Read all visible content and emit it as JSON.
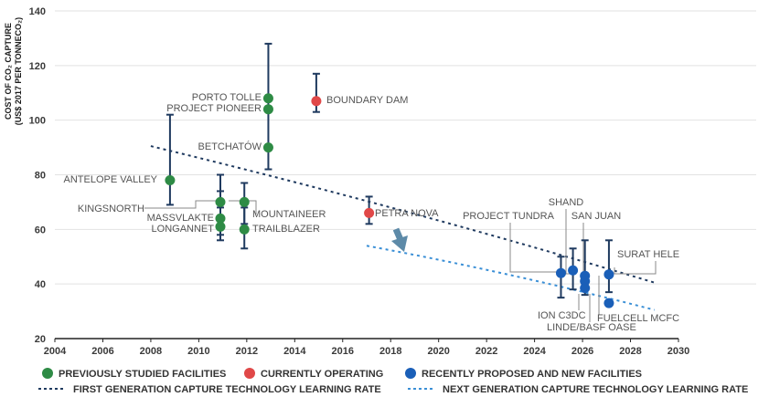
{
  "chart_data": {
    "type": "scatter",
    "ylabel_line1": "COST OF CO₂ CAPTURE",
    "ylabel_line2": "(US$ 2017 PER TONNECO₂)",
    "xlim": [
      2004,
      2030
    ],
    "ylim": [
      20,
      140
    ],
    "xticks": [
      2004,
      2006,
      2008,
      2010,
      2012,
      2014,
      2016,
      2018,
      2020,
      2022,
      2024,
      2026,
      2028,
      2030
    ],
    "yticks": [
      20,
      40,
      60,
      80,
      100,
      120,
      140
    ],
    "grid": "horizontal",
    "colors": {
      "previously": "#2e8b45",
      "operating": "#e04848",
      "proposed": "#1a5fb8",
      "errorbar": "#1f3a5f",
      "first_gen": "#1f3a5f",
      "next_gen": "#3a8fd6",
      "arrow": "#5d8aa8",
      "leader": "#888888"
    },
    "points": [
      {
        "name": "ANTELOPE VALLEY",
        "x": 2008.8,
        "y": 78,
        "low": 69,
        "high": 102,
        "category": "previously"
      },
      {
        "name": "MASSVLAKTE",
        "x": 2010.9,
        "y": 70,
        "low": 60,
        "high": 80,
        "category": "previously"
      },
      {
        "name": "KINGSNORTH",
        "x": 2010.9,
        "y": 64,
        "low": 58,
        "high": 74,
        "category": "previously"
      },
      {
        "name": "LONGANNET",
        "x": 2010.9,
        "y": 61,
        "low": 56,
        "high": 68,
        "category": "previously"
      },
      {
        "name": "MOUNTAINEER",
        "x": 2011.9,
        "y": 70,
        "low": 62,
        "high": 77,
        "category": "previously"
      },
      {
        "name": "TRAILBLAZER",
        "x": 2011.9,
        "y": 60,
        "low": 53,
        "high": 68,
        "category": "previously"
      },
      {
        "name": "PORTO TOLLE",
        "x": 2012.9,
        "y": 108,
        "low": 82,
        "high": 128,
        "category": "previously"
      },
      {
        "name": "PROJECT PIONEER",
        "x": 2012.9,
        "y": 104,
        "low": 82,
        "high": 128,
        "category": "previously"
      },
      {
        "name": "BETCHATÓW",
        "x": 2012.9,
        "y": 90,
        "low": 82,
        "high": 128,
        "category": "previously"
      },
      {
        "name": "BOUNDARY DAM",
        "x": 2014.9,
        "y": 107,
        "low": 103,
        "high": 117,
        "category": "operating"
      },
      {
        "name": "PETRA NOVA",
        "x": 2017.1,
        "y": 66,
        "low": 62,
        "high": 72,
        "category": "operating"
      },
      {
        "name": "ION C3DC",
        "x": 2025.1,
        "y": 44,
        "low": 35,
        "high": 50,
        "category": "proposed"
      },
      {
        "name": "PROJECT TUNDRA",
        "x": 2025.6,
        "y": 45,
        "low": 38,
        "high": 53,
        "category": "proposed"
      },
      {
        "name": "SHAND",
        "x": 2026.1,
        "y": 43,
        "low": 36,
        "high": 56,
        "category": "proposed"
      },
      {
        "name": "SAN JUAN",
        "x": 2026.1,
        "y": 41,
        "low": 36,
        "high": 56,
        "category": "proposed"
      },
      {
        "name": "LINDE/BASF OASE",
        "x": 2026.1,
        "y": 38.5,
        "low": 36,
        "high": 56,
        "category": "proposed"
      },
      {
        "name": "SURAT HELE",
        "x": 2027.1,
        "y": 43.5,
        "low": 37,
        "high": 56,
        "category": "proposed"
      },
      {
        "name": "FUELCELL MCFC",
        "x": 2027.1,
        "y": 33,
        "low": 33,
        "high": 33,
        "category": "proposed"
      }
    ],
    "labels": {
      "antelope": "ANTELOPE VALLEY",
      "kingsnorth": "KINGSNORTH",
      "massvlakte": "MASSVLAKTE",
      "longannet": "LONGANNET",
      "mountaineer": "MOUNTAINEER",
      "trailblazer": "TRAILBLAZER",
      "porto_tolle": "PORTO TOLLE",
      "project_pioneer": "PROJECT PIONEER",
      "betchatow": "BETCHATÓW",
      "boundary_dam": "BOUNDARY DAM",
      "petra_nova": "PETRA NOVA",
      "project_tundra": "PROJECT TUNDRA",
      "shand": "SHAND",
      "san_juan": "SAN JUAN",
      "surat_hele": "SURAT HELE",
      "ion_c3dc": "ION C3DC",
      "fuelcell_mcfc": "FUELCELL MCFC",
      "linde_basf": "LINDE/BASF OASE"
    },
    "trend_lines": [
      {
        "name": "FIRST GENERATION CAPTURE TECHNOLOGY LEARNING  RATE",
        "x": [
          2008,
          2029
        ],
        "y": [
          90.5,
          40.5
        ],
        "curvature": -0.4
      },
      {
        "name": "NEXT GENERATION CAPTURE TECHNOLOGY LEARNING  RATE",
        "x": [
          2017,
          2029
        ],
        "y": [
          54,
          30.5
        ],
        "curvature": -0.3
      }
    ],
    "legend": {
      "placement": "bottom",
      "previously": "PREVIOUSLY STUDIED FACILITIES",
      "operating": "CURRENTLY OPERATING",
      "proposed": "RECENTLY PROPOSED AND NEW FACILITIES",
      "first_gen": "FIRST GENERATION CAPTURE TECHNOLOGY LEARNING  RATE",
      "next_gen": "NEXT GENERATION CAPTURE TECHNOLOGY LEARNING  RATE"
    }
  }
}
